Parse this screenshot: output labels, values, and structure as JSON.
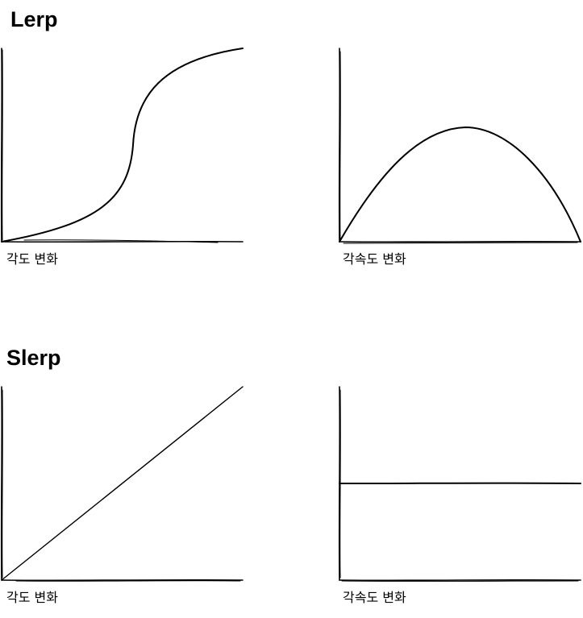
{
  "lerp": {
    "title": "Lerp",
    "angle_label": "각도 변화",
    "velocity_label": "각속도 변화"
  },
  "slerp": {
    "title": "Slerp",
    "angle_label": "각도 변화",
    "velocity_label": "각속도 변화"
  },
  "stroke_color": "#000000",
  "background_color": "#ffffff"
}
